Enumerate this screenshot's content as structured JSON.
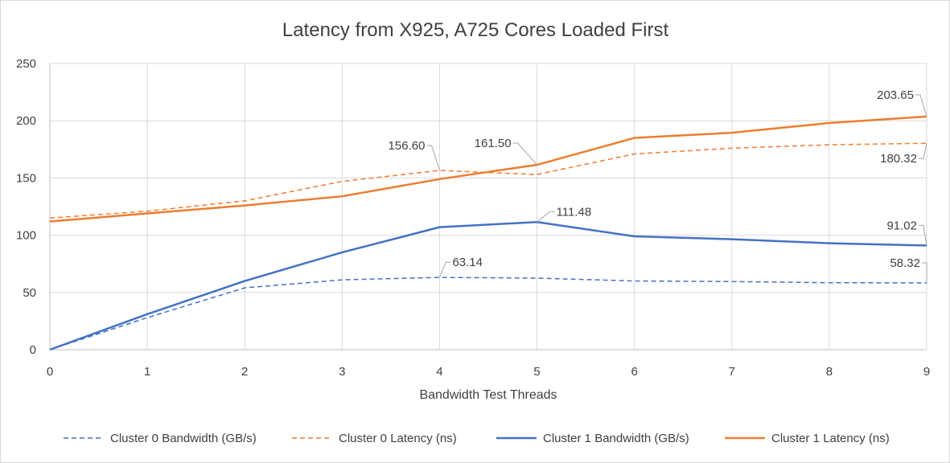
{
  "chart_data": {
    "type": "line",
    "title": "Latency from X925, A725 Cores Loaded First",
    "xlabel": "Bandwidth Test Threads",
    "ylabel": "",
    "x": [
      0,
      1,
      2,
      3,
      4,
      5,
      6,
      7,
      8,
      9
    ],
    "xlim": [
      0,
      9
    ],
    "ylim": [
      0,
      250
    ],
    "yticks": [
      0,
      50,
      100,
      150,
      200,
      250
    ],
    "grid": true,
    "legend": "bottom",
    "series": [
      {
        "name": "Cluster 0 Bandwidth (GB/s)",
        "color": "#4472C4",
        "dash": true,
        "values": [
          0,
          28,
          54,
          61,
          63.14,
          62.5,
          60,
          59.5,
          58.5,
          58.32
        ]
      },
      {
        "name": "Cluster 0 Latency (ns)",
        "color": "#ED7D31",
        "dash": true,
        "values": [
          115,
          121,
          130,
          147,
          156.6,
          153,
          171,
          176,
          179,
          180.32
        ]
      },
      {
        "name": "Cluster 1 Bandwidth (GB/s)",
        "color": "#4472C4",
        "dash": false,
        "values": [
          0,
          31,
          60,
          85,
          107,
          111.48,
          99,
          96.5,
          93,
          91.02
        ]
      },
      {
        "name": "Cluster 1 Latency (ns)",
        "color": "#ED7D31",
        "dash": false,
        "values": [
          112,
          119,
          126,
          134,
          149,
          161.5,
          185,
          189.5,
          198,
          203.65
        ]
      }
    ],
    "annotations": [
      {
        "series": 0,
        "index": 4,
        "text": "63.14"
      },
      {
        "series": 0,
        "index": 9,
        "text": "58.32"
      },
      {
        "series": 1,
        "index": 4,
        "text": "156.60"
      },
      {
        "series": 1,
        "index": 9,
        "text": "180.32"
      },
      {
        "series": 2,
        "index": 5,
        "text": "111.48"
      },
      {
        "series": 2,
        "index": 9,
        "text": "91.02"
      },
      {
        "series": 3,
        "index": 5,
        "text": "161.50"
      },
      {
        "series": 3,
        "index": 9,
        "text": "203.65"
      }
    ]
  }
}
